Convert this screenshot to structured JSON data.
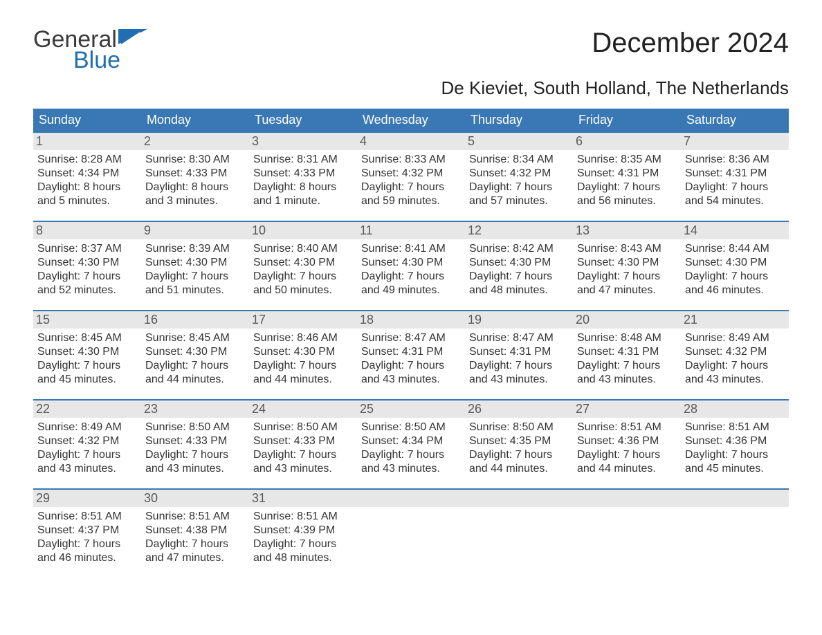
{
  "logo": {
    "word1": "General",
    "word2": "Blue",
    "flag_color": "#1f6fb2",
    "text_gray": "#3a3a3a"
  },
  "title": "December 2024",
  "location": "De Kieviet, South Holland, The Netherlands",
  "colors": {
    "header_bg": "#3a78b5",
    "header_text": "#ffffff",
    "daynum_bg": "#e7e7e7",
    "daynum_text": "#5a5a5a",
    "body_text": "#333333",
    "week_border": "#3a78b5",
    "page_bg": "#ffffff"
  },
  "weekdays": [
    "Sunday",
    "Monday",
    "Tuesday",
    "Wednesday",
    "Thursday",
    "Friday",
    "Saturday"
  ],
  "weeks": [
    [
      {
        "n": "1",
        "sunrise": "Sunrise: 8:28 AM",
        "sunset": "Sunset: 4:34 PM",
        "d1": "Daylight: 8 hours",
        "d2": "and 5 minutes."
      },
      {
        "n": "2",
        "sunrise": "Sunrise: 8:30 AM",
        "sunset": "Sunset: 4:33 PM",
        "d1": "Daylight: 8 hours",
        "d2": "and 3 minutes."
      },
      {
        "n": "3",
        "sunrise": "Sunrise: 8:31 AM",
        "sunset": "Sunset: 4:33 PM",
        "d1": "Daylight: 8 hours",
        "d2": "and 1 minute."
      },
      {
        "n": "4",
        "sunrise": "Sunrise: 8:33 AM",
        "sunset": "Sunset: 4:32 PM",
        "d1": "Daylight: 7 hours",
        "d2": "and 59 minutes."
      },
      {
        "n": "5",
        "sunrise": "Sunrise: 8:34 AM",
        "sunset": "Sunset: 4:32 PM",
        "d1": "Daylight: 7 hours",
        "d2": "and 57 minutes."
      },
      {
        "n": "6",
        "sunrise": "Sunrise: 8:35 AM",
        "sunset": "Sunset: 4:31 PM",
        "d1": "Daylight: 7 hours",
        "d2": "and 56 minutes."
      },
      {
        "n": "7",
        "sunrise": "Sunrise: 8:36 AM",
        "sunset": "Sunset: 4:31 PM",
        "d1": "Daylight: 7 hours",
        "d2": "and 54 minutes."
      }
    ],
    [
      {
        "n": "8",
        "sunrise": "Sunrise: 8:37 AM",
        "sunset": "Sunset: 4:30 PM",
        "d1": "Daylight: 7 hours",
        "d2": "and 52 minutes."
      },
      {
        "n": "9",
        "sunrise": "Sunrise: 8:39 AM",
        "sunset": "Sunset: 4:30 PM",
        "d1": "Daylight: 7 hours",
        "d2": "and 51 minutes."
      },
      {
        "n": "10",
        "sunrise": "Sunrise: 8:40 AM",
        "sunset": "Sunset: 4:30 PM",
        "d1": "Daylight: 7 hours",
        "d2": "and 50 minutes."
      },
      {
        "n": "11",
        "sunrise": "Sunrise: 8:41 AM",
        "sunset": "Sunset: 4:30 PM",
        "d1": "Daylight: 7 hours",
        "d2": "and 49 minutes."
      },
      {
        "n": "12",
        "sunrise": "Sunrise: 8:42 AM",
        "sunset": "Sunset: 4:30 PM",
        "d1": "Daylight: 7 hours",
        "d2": "and 48 minutes."
      },
      {
        "n": "13",
        "sunrise": "Sunrise: 8:43 AM",
        "sunset": "Sunset: 4:30 PM",
        "d1": "Daylight: 7 hours",
        "d2": "and 47 minutes."
      },
      {
        "n": "14",
        "sunrise": "Sunrise: 8:44 AM",
        "sunset": "Sunset: 4:30 PM",
        "d1": "Daylight: 7 hours",
        "d2": "and 46 minutes."
      }
    ],
    [
      {
        "n": "15",
        "sunrise": "Sunrise: 8:45 AM",
        "sunset": "Sunset: 4:30 PM",
        "d1": "Daylight: 7 hours",
        "d2": "and 45 minutes."
      },
      {
        "n": "16",
        "sunrise": "Sunrise: 8:45 AM",
        "sunset": "Sunset: 4:30 PM",
        "d1": "Daylight: 7 hours",
        "d2": "and 44 minutes."
      },
      {
        "n": "17",
        "sunrise": "Sunrise: 8:46 AM",
        "sunset": "Sunset: 4:30 PM",
        "d1": "Daylight: 7 hours",
        "d2": "and 44 minutes."
      },
      {
        "n": "18",
        "sunrise": "Sunrise: 8:47 AM",
        "sunset": "Sunset: 4:31 PM",
        "d1": "Daylight: 7 hours",
        "d2": "and 43 minutes."
      },
      {
        "n": "19",
        "sunrise": "Sunrise: 8:47 AM",
        "sunset": "Sunset: 4:31 PM",
        "d1": "Daylight: 7 hours",
        "d2": "and 43 minutes."
      },
      {
        "n": "20",
        "sunrise": "Sunrise: 8:48 AM",
        "sunset": "Sunset: 4:31 PM",
        "d1": "Daylight: 7 hours",
        "d2": "and 43 minutes."
      },
      {
        "n": "21",
        "sunrise": "Sunrise: 8:49 AM",
        "sunset": "Sunset: 4:32 PM",
        "d1": "Daylight: 7 hours",
        "d2": "and 43 minutes."
      }
    ],
    [
      {
        "n": "22",
        "sunrise": "Sunrise: 8:49 AM",
        "sunset": "Sunset: 4:32 PM",
        "d1": "Daylight: 7 hours",
        "d2": "and 43 minutes."
      },
      {
        "n": "23",
        "sunrise": "Sunrise: 8:50 AM",
        "sunset": "Sunset: 4:33 PM",
        "d1": "Daylight: 7 hours",
        "d2": "and 43 minutes."
      },
      {
        "n": "24",
        "sunrise": "Sunrise: 8:50 AM",
        "sunset": "Sunset: 4:33 PM",
        "d1": "Daylight: 7 hours",
        "d2": "and 43 minutes."
      },
      {
        "n": "25",
        "sunrise": "Sunrise: 8:50 AM",
        "sunset": "Sunset: 4:34 PM",
        "d1": "Daylight: 7 hours",
        "d2": "and 43 minutes."
      },
      {
        "n": "26",
        "sunrise": "Sunrise: 8:50 AM",
        "sunset": "Sunset: 4:35 PM",
        "d1": "Daylight: 7 hours",
        "d2": "and 44 minutes."
      },
      {
        "n": "27",
        "sunrise": "Sunrise: 8:51 AM",
        "sunset": "Sunset: 4:36 PM",
        "d1": "Daylight: 7 hours",
        "d2": "and 44 minutes."
      },
      {
        "n": "28",
        "sunrise": "Sunrise: 8:51 AM",
        "sunset": "Sunset: 4:36 PM",
        "d1": "Daylight: 7 hours",
        "d2": "and 45 minutes."
      }
    ],
    [
      {
        "n": "29",
        "sunrise": "Sunrise: 8:51 AM",
        "sunset": "Sunset: 4:37 PM",
        "d1": "Daylight: 7 hours",
        "d2": "and 46 minutes."
      },
      {
        "n": "30",
        "sunrise": "Sunrise: 8:51 AM",
        "sunset": "Sunset: 4:38 PM",
        "d1": "Daylight: 7 hours",
        "d2": "and 47 minutes."
      },
      {
        "n": "31",
        "sunrise": "Sunrise: 8:51 AM",
        "sunset": "Sunset: 4:39 PM",
        "d1": "Daylight: 7 hours",
        "d2": "and 48 minutes."
      },
      {
        "empty": true
      },
      {
        "empty": true
      },
      {
        "empty": true
      },
      {
        "empty": true
      }
    ]
  ]
}
